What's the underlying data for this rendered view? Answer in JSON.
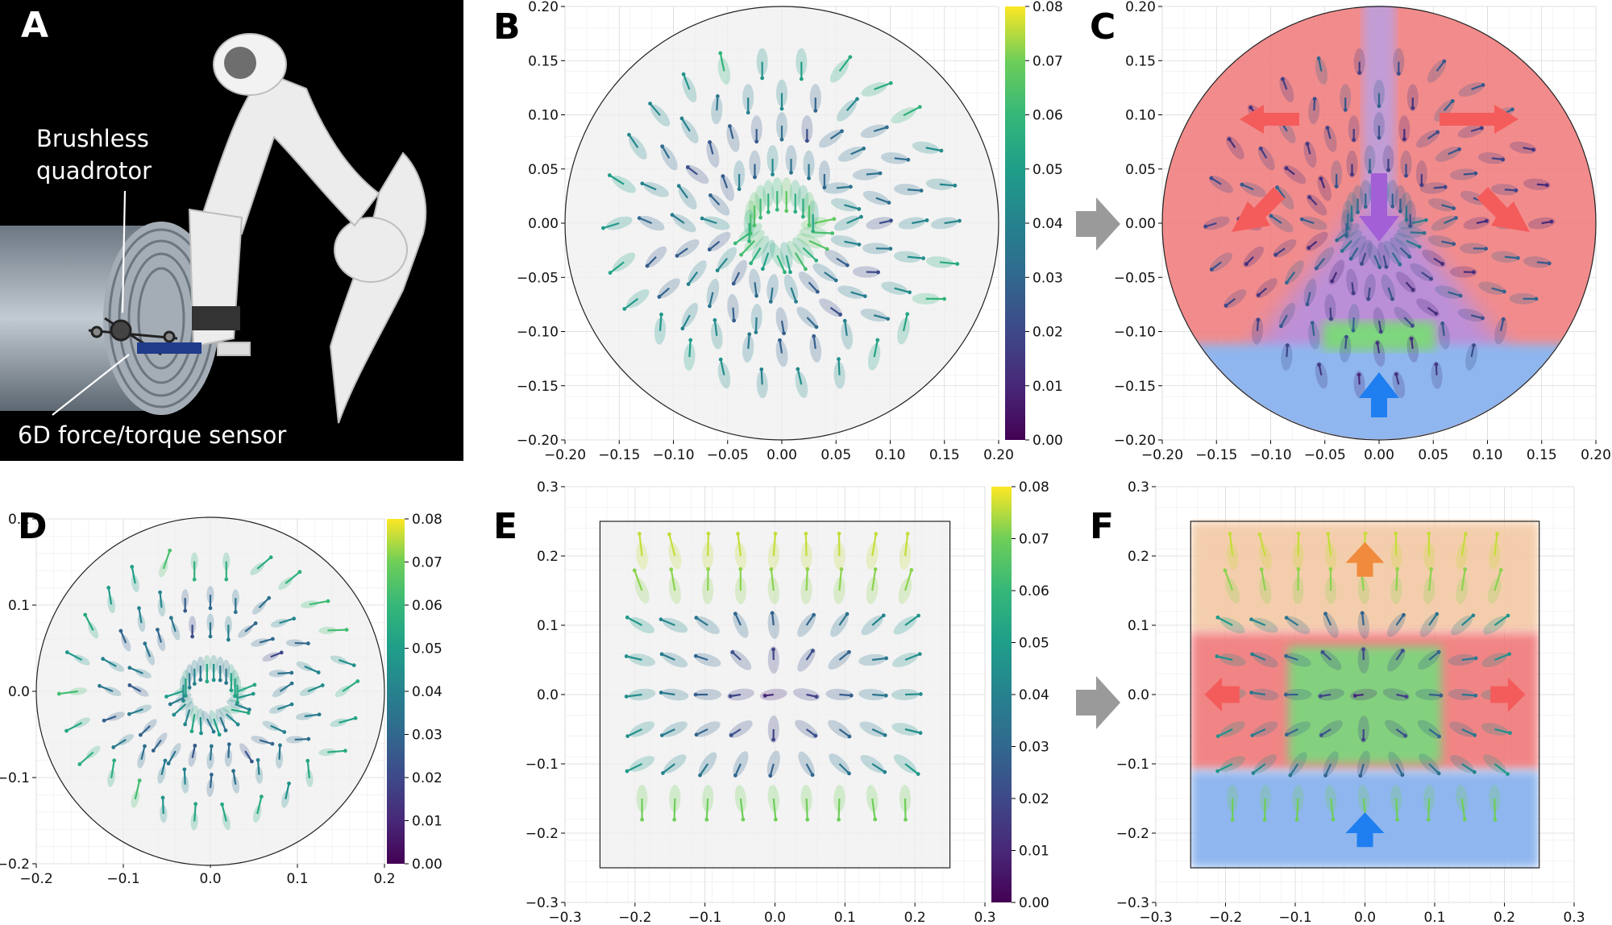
{
  "figure": {
    "panels": [
      "A",
      "B",
      "C",
      "D",
      "E",
      "F"
    ],
    "photo": {
      "label_quadrotor_line1": "Brushless",
      "label_quadrotor_line2": "quadrotor",
      "label_sensor": "6D force/torque sensor",
      "colors": {
        "background": "#000000",
        "robot": "#e9e9e9",
        "pipe": "#8e9aa6"
      }
    }
  },
  "chart_data": [
    {
      "panel": "B",
      "type": "quiver",
      "domain": "circle",
      "radius": 0.2,
      "xlim": [
        -0.2,
        0.2
      ],
      "ylim": [
        -0.2,
        0.2
      ],
      "xticks": [
        "−0.20",
        "−0.15",
        "−0.10",
        "−0.05",
        "0.00",
        "0.05",
        "0.10",
        "0.15",
        "0.20"
      ],
      "yticks": [
        "−0.20",
        "−0.15",
        "−0.10",
        "−0.05",
        "0.00",
        "0.05",
        "0.10",
        "0.15",
        "0.20"
      ],
      "colorbar": {
        "min": 0.0,
        "max": 0.08,
        "ticks": [
          "0.00",
          "0.01",
          "0.02",
          "0.03",
          "0.04",
          "0.05",
          "0.06",
          "0.07",
          "0.08"
        ],
        "colormap": "viridis"
      },
      "grid": true
    },
    {
      "panel": "C",
      "type": "quiver-regions",
      "domain": "circle",
      "radius": 0.2,
      "xlim": [
        -0.2,
        0.2
      ],
      "ylim": [
        -0.2,
        0.2
      ],
      "xticks": [
        "−0.20",
        "−0.15",
        "−0.10",
        "−0.05",
        "0.00",
        "0.05",
        "0.10",
        "0.15",
        "0.20"
      ],
      "yticks": [
        "−0.20",
        "−0.15",
        "−0.10",
        "−0.05",
        "0.00",
        "0.05",
        "0.10",
        "0.15",
        "0.20"
      ],
      "regions": [
        {
          "name": "upper-sides",
          "color": "#f07878",
          "arrows": "outward"
        },
        {
          "name": "center",
          "color": "#b690e0",
          "arrows": "down"
        },
        {
          "name": "bottom",
          "color": "#8fb6ee",
          "arrows": "up"
        },
        {
          "name": "band",
          "color": "#7ed67e"
        }
      ],
      "grid": true
    },
    {
      "panel": "D",
      "type": "quiver",
      "domain": "circle",
      "radius": 0.25,
      "xlim": [
        -0.25,
        0.25
      ],
      "ylim": [
        -0.25,
        0.25
      ],
      "xticks": [
        "−0.2",
        "−0.1",
        "0.0",
        "0.1",
        "0.2"
      ],
      "yticks": [
        "−0.2",
        "−0.1",
        "0.0",
        "0.1",
        "0.2"
      ],
      "colorbar": {
        "min": 0.0,
        "max": 0.08,
        "ticks": [
          "0.00",
          "0.01",
          "0.02",
          "0.03",
          "0.04",
          "0.05",
          "0.06",
          "0.07",
          "0.08"
        ],
        "colormap": "viridis"
      },
      "grid": true
    },
    {
      "panel": "E",
      "type": "quiver",
      "domain": "square",
      "half_width": 0.25,
      "xlim": [
        -0.3,
        0.3
      ],
      "ylim": [
        -0.3,
        0.3
      ],
      "xticks": [
        "−0.3",
        "−0.2",
        "−0.1",
        "0.0",
        "0.1",
        "0.2",
        "0.3"
      ],
      "yticks": [
        "−0.3",
        "−0.2",
        "−0.1",
        "0.0",
        "0.1",
        "0.2",
        "0.3"
      ],
      "colorbar": {
        "min": 0.0,
        "max": 0.08,
        "ticks": [
          "0.00",
          "0.01",
          "0.02",
          "0.03",
          "0.04",
          "0.05",
          "0.06",
          "0.07",
          "0.08"
        ],
        "colormap": "viridis"
      },
      "grid": true
    },
    {
      "panel": "F",
      "type": "quiver-regions",
      "domain": "square",
      "half_width": 0.25,
      "xlim": [
        -0.3,
        0.3
      ],
      "ylim": [
        -0.3,
        0.3
      ],
      "xticks": [
        "−0.3",
        "−0.2",
        "−0.1",
        "0.0",
        "0.1",
        "0.2",
        "0.3"
      ],
      "yticks": [
        "−0.3",
        "−0.2",
        "−0.1",
        "0.0",
        "0.1",
        "0.2",
        "0.3"
      ],
      "regions": [
        {
          "name": "top",
          "color": "#f3c9a4",
          "arrows": "up"
        },
        {
          "name": "sides",
          "color": "#f07878",
          "arrows": "outward"
        },
        {
          "name": "center",
          "color": "#7ed67e"
        },
        {
          "name": "bottom",
          "color": "#8fb6ee",
          "arrows": "up"
        }
      ],
      "grid": true
    }
  ]
}
